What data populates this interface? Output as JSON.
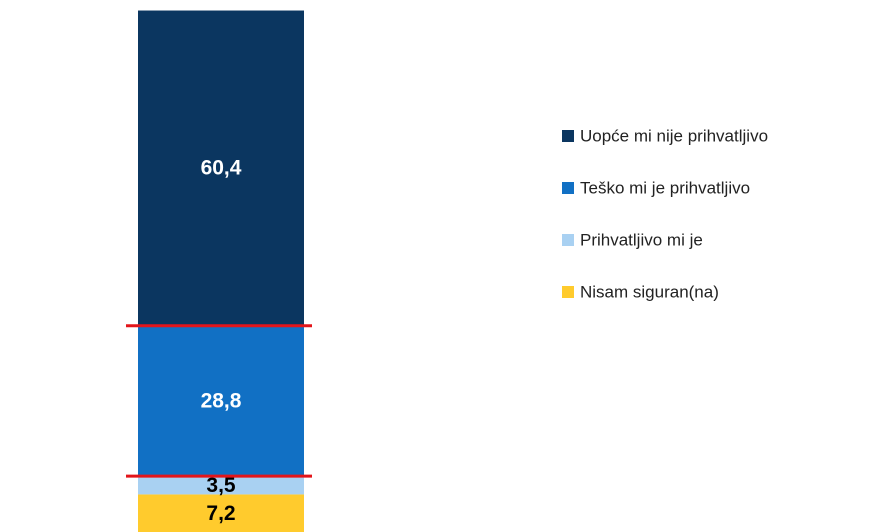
{
  "chart_data": {
    "type": "stacked-bar",
    "categories": [
      null
    ],
    "ylim": [
      0,
      100
    ],
    "series": [
      {
        "name": "Nisam siguran(na)",
        "color": "#ffcb2d",
        "values": [
          7.2
        ],
        "value_labels": [
          "7,2"
        ]
      },
      {
        "name": "Prihvatljivo mi je",
        "color": "#a9d1f2",
        "values": [
          3.5
        ],
        "value_labels": [
          "3,5"
        ]
      },
      {
        "name": "Teško mi je prihvatljivo",
        "color": "#1170c4",
        "values": [
          28.8
        ],
        "value_labels": [
          "28,8"
        ]
      },
      {
        "name": "Uopće mi nije prihvatljivo",
        "color": "#0b3660",
        "values": [
          60.4
        ],
        "value_labels": [
          "60,4"
        ]
      }
    ]
  }
}
